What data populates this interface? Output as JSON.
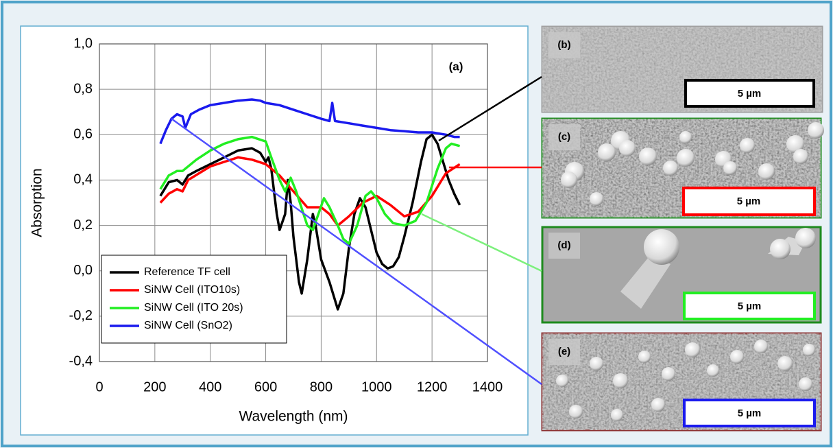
{
  "chart_data": {
    "type": "line",
    "annotation": "(a)",
    "x_label": "Wavelength (nm)",
    "y_label": "Absorption",
    "xlim": [
      0,
      1400
    ],
    "xticks": [
      0,
      200,
      400,
      600,
      800,
      1000,
      1200,
      1400
    ],
    "ylim": [
      -0.4,
      1.0
    ],
    "yticks": [
      {
        "value": -0.4,
        "label": "-0,4"
      },
      {
        "value": -0.2,
        "label": "-0,2"
      },
      {
        "value": 0,
        "label": "0,0"
      },
      {
        "value": 0.2,
        "label": "0,2"
      },
      {
        "value": 0.4,
        "label": "0,4"
      },
      {
        "value": 0.6,
        "label": "0,6"
      },
      {
        "value": 0.8,
        "label": "0,8"
      },
      {
        "value": 1.0,
        "label": "1,0"
      }
    ],
    "grid": true,
    "legend": "lower left",
    "series": [
      {
        "name": "Reference TF cell",
        "color": "#000000",
        "x": [
          220,
          250,
          280,
          300,
          320,
          350,
          400,
          450,
          500,
          550,
          580,
          600,
          610,
          620,
          640,
          650,
          670,
          680,
          690,
          700,
          720,
          730,
          750,
          770,
          780,
          800,
          830,
          860,
          880,
          900,
          920,
          940,
          960,
          980,
          1000,
          1020,
          1040,
          1060,
          1080,
          1100,
          1130,
          1160,
          1180,
          1200,
          1220,
          1240,
          1260,
          1280,
          1300
        ],
        "values": [
          0.33,
          0.39,
          0.4,
          0.38,
          0.42,
          0.44,
          0.47,
          0.5,
          0.53,
          0.54,
          0.52,
          0.48,
          0.5,
          0.45,
          0.25,
          0.18,
          0.25,
          0.4,
          0.3,
          0.15,
          -0.05,
          -0.1,
          0.05,
          0.25,
          0.2,
          0.05,
          -0.05,
          -0.17,
          -0.1,
          0.1,
          0.25,
          0.32,
          0.28,
          0.18,
          0.08,
          0.03,
          0.01,
          0.02,
          0.06,
          0.15,
          0.3,
          0.48,
          0.58,
          0.6,
          0.56,
          0.48,
          0.4,
          0.34,
          0.29
        ]
      },
      {
        "name": "SiNW Cell (ITO10s)",
        "color": "#ff0000",
        "x": [
          220,
          250,
          280,
          300,
          320,
          360,
          400,
          450,
          500,
          550,
          600,
          650,
          700,
          750,
          800,
          830,
          860,
          900,
          950,
          1000,
          1050,
          1100,
          1150,
          1200,
          1250,
          1300
        ],
        "values": [
          0.3,
          0.34,
          0.36,
          0.35,
          0.4,
          0.43,
          0.46,
          0.48,
          0.5,
          0.49,
          0.47,
          0.42,
          0.35,
          0.28,
          0.28,
          0.25,
          0.2,
          0.24,
          0.3,
          0.33,
          0.29,
          0.24,
          0.26,
          0.33,
          0.43,
          0.47
        ]
      },
      {
        "name": "SiNW Cell (ITO 20s)",
        "color": "#22ee22",
        "x": [
          220,
          250,
          280,
          300,
          350,
          400,
          450,
          500,
          550,
          600,
          620,
          650,
          670,
          690,
          710,
          750,
          770,
          790,
          810,
          830,
          860,
          880,
          900,
          930,
          960,
          980,
          1000,
          1030,
          1060,
          1100,
          1140,
          1180,
          1220,
          1250,
          1270,
          1300
        ],
        "values": [
          0.36,
          0.42,
          0.44,
          0.44,
          0.49,
          0.53,
          0.56,
          0.58,
          0.59,
          0.57,
          0.5,
          0.4,
          0.35,
          0.41,
          0.35,
          0.2,
          0.18,
          0.25,
          0.32,
          0.28,
          0.2,
          0.14,
          0.12,
          0.2,
          0.33,
          0.35,
          0.32,
          0.25,
          0.21,
          0.2,
          0.22,
          0.3,
          0.45,
          0.54,
          0.56,
          0.55
        ]
      },
      {
        "name": "SiNW Cell (SnO2)",
        "color": "#1a1aee",
        "x": [
          220,
          240,
          260,
          280,
          300,
          310,
          330,
          360,
          400,
          450,
          500,
          550,
          580,
          600,
          650,
          700,
          750,
          800,
          830,
          840,
          850,
          900,
          950,
          1000,
          1050,
          1100,
          1150,
          1200,
          1250,
          1280,
          1300
        ],
        "values": [
          0.56,
          0.62,
          0.67,
          0.69,
          0.68,
          0.63,
          0.69,
          0.71,
          0.73,
          0.74,
          0.75,
          0.755,
          0.75,
          0.74,
          0.73,
          0.71,
          0.69,
          0.67,
          0.66,
          0.74,
          0.66,
          0.65,
          0.64,
          0.63,
          0.62,
          0.615,
          0.61,
          0.61,
          0.6,
          0.59,
          0.59
        ]
      }
    ]
  },
  "panels": [
    {
      "label": "(b)",
      "scale": "5 µm"
    },
    {
      "label": "(c)",
      "scale": "5 µm"
    },
    {
      "label": "(d)",
      "scale": "5 µm"
    },
    {
      "label": "(e)",
      "scale": "5 µm"
    }
  ]
}
